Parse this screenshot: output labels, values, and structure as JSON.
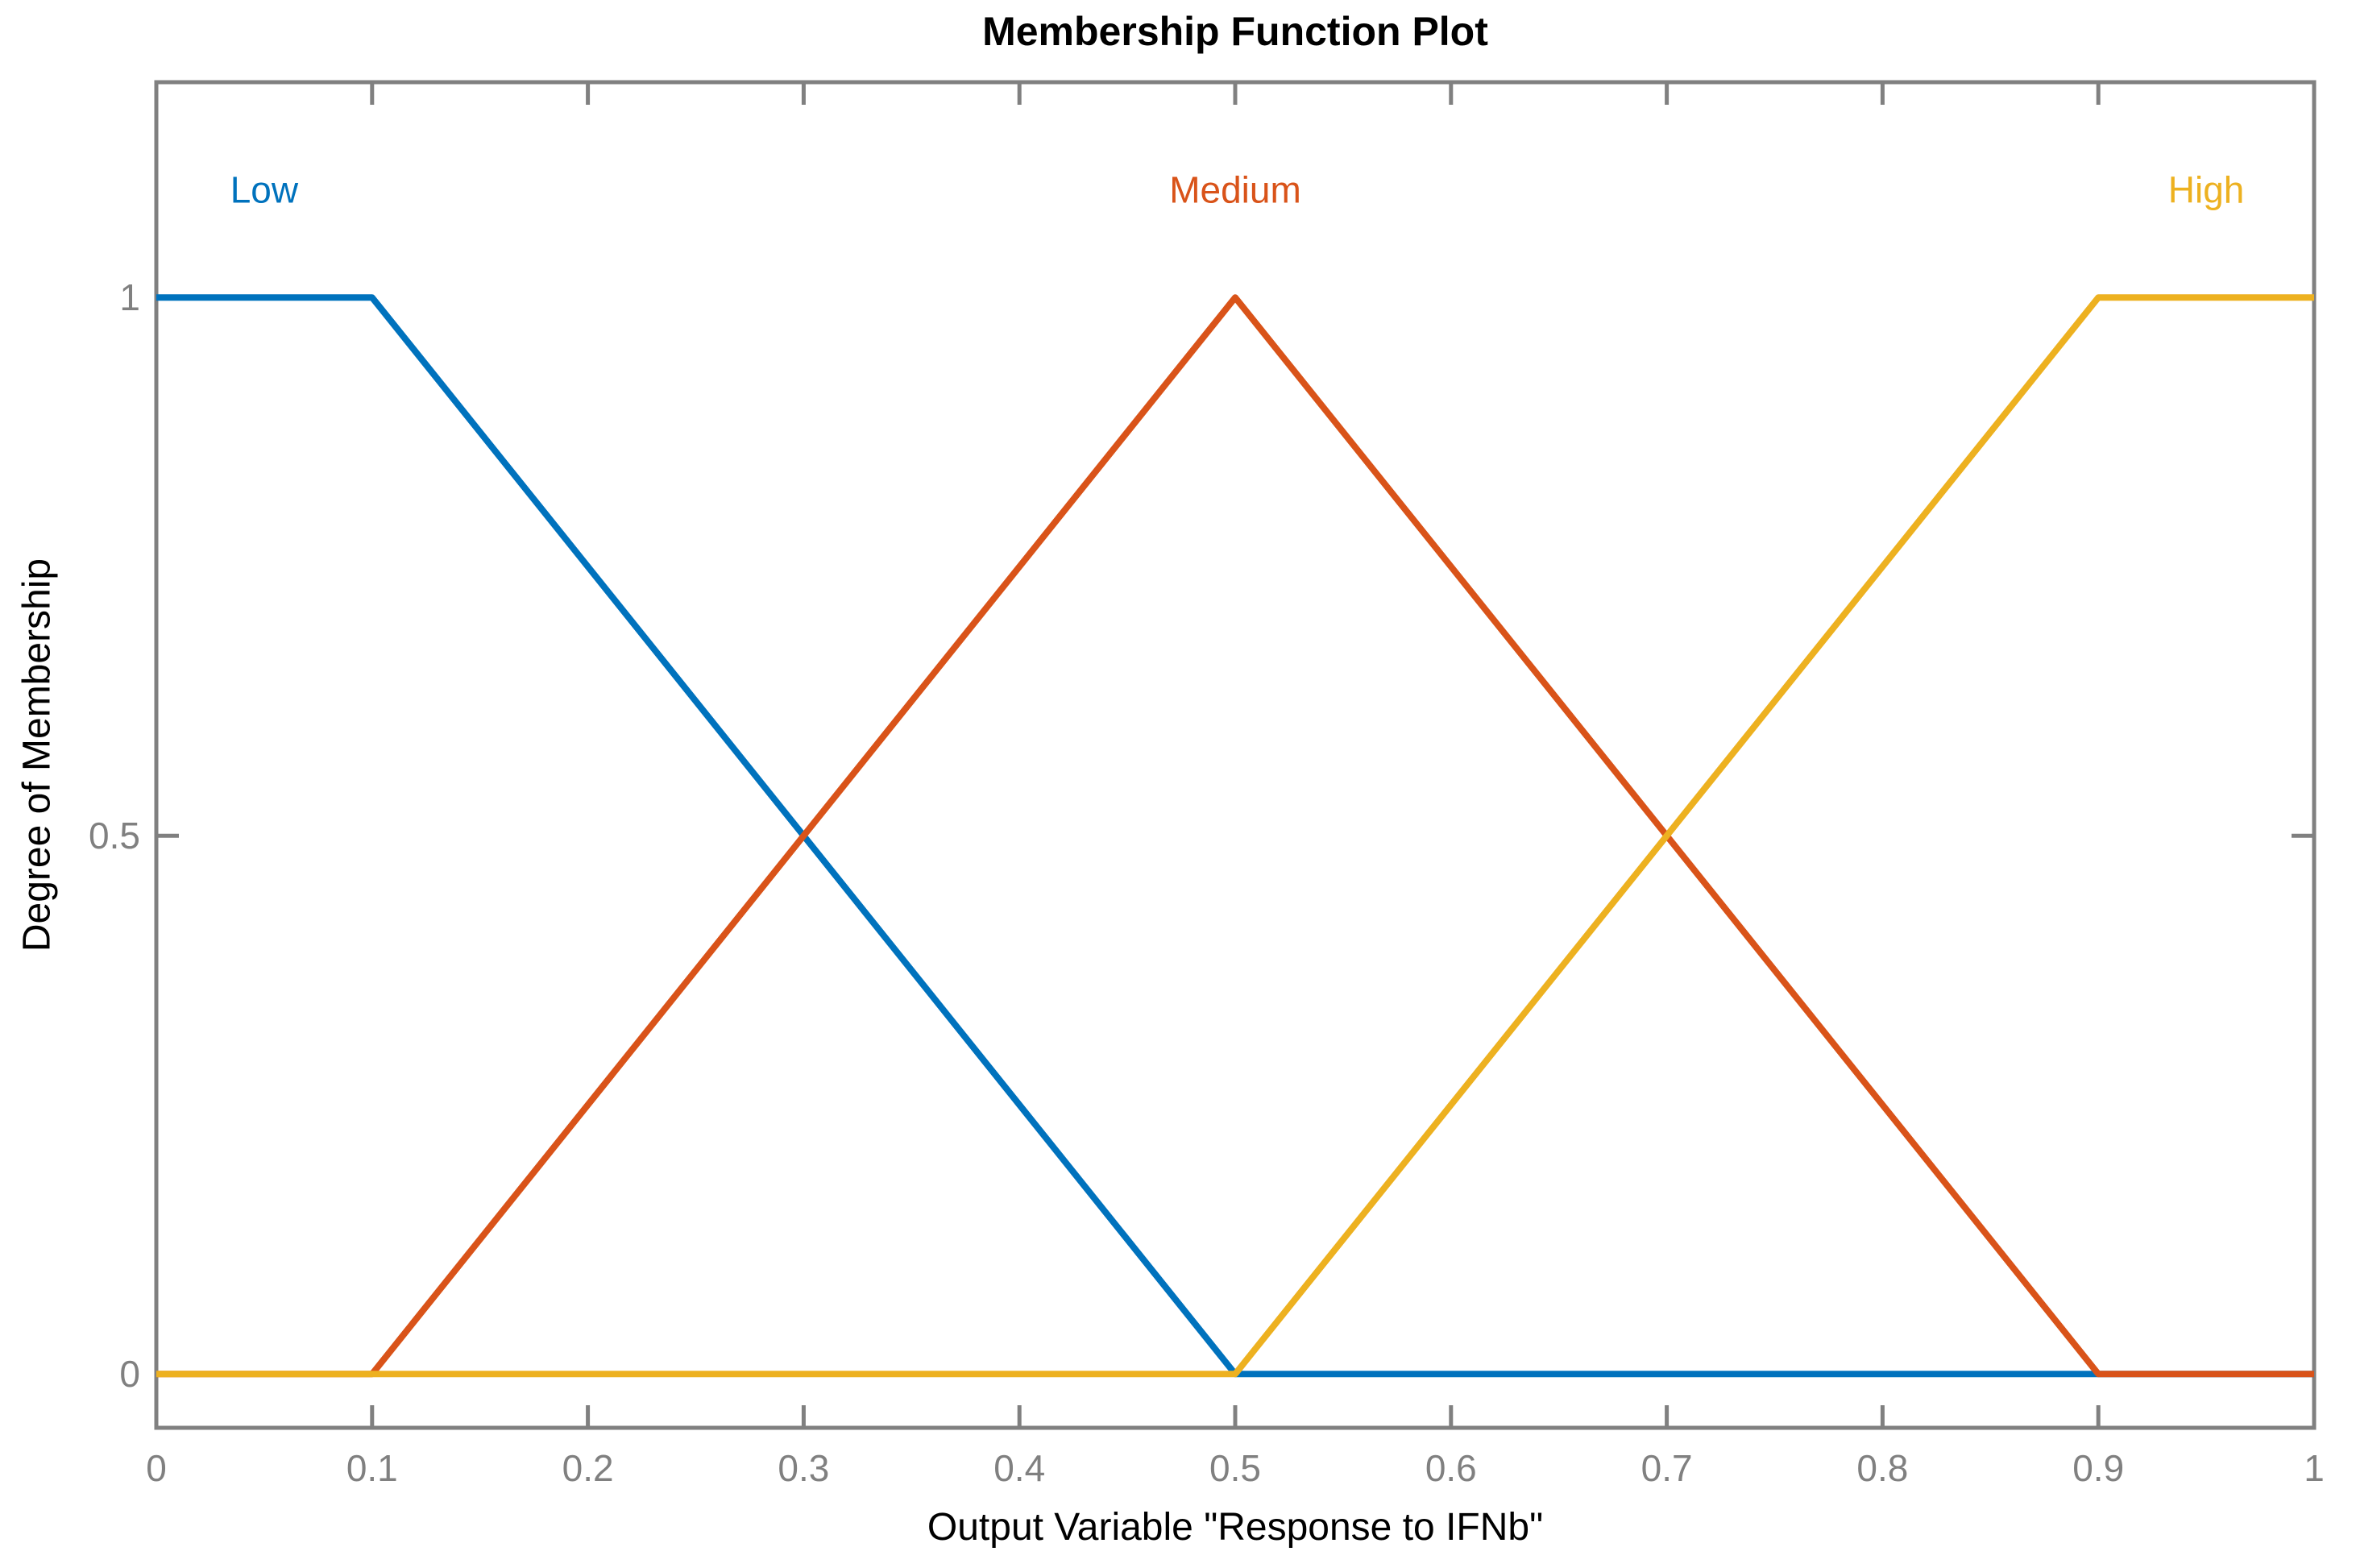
{
  "figure": {
    "title": "Membership Function Plot",
    "xlabel": "Output Variable \"Response to IFNb\"",
    "ylabel": "Degree of Membership"
  },
  "chart_data": {
    "type": "line",
    "title": "Membership Function Plot",
    "xlabel": "Output Variable \"Response to IFNb\"",
    "ylabel": "Degree of Membership",
    "xlim": [
      0,
      1
    ],
    "ylim": [
      -0.05,
      1.2
    ],
    "x_ticks": [
      0,
      0.1,
      0.2,
      0.3,
      0.4,
      0.5,
      0.6,
      0.7,
      0.8,
      0.9,
      1
    ],
    "x_tick_labels": [
      "0",
      "0.1",
      "0.2",
      "0.3",
      "0.4",
      "0.5",
      "0.6",
      "0.7",
      "0.8",
      "0.9",
      "1"
    ],
    "y_ticks": [
      0,
      0.5,
      1
    ],
    "y_tick_labels": [
      "0",
      "0.5",
      "1"
    ],
    "grid": false,
    "box": true,
    "tick_direction": "in",
    "legend_position": "inline-labels-above-curves",
    "series": [
      {
        "name": "Low",
        "color": "#0072BD",
        "x": [
          0,
          0.1,
          0.5,
          1
        ],
        "y": [
          1,
          1,
          0,
          0
        ],
        "label": "Low",
        "label_pos": {
          "x": 0.05,
          "y": 1.1
        }
      },
      {
        "name": "Medium",
        "color": "#D95319",
        "x": [
          0,
          0.1,
          0.5,
          0.9,
          1
        ],
        "y": [
          0,
          0,
          1,
          0,
          0
        ],
        "label": "Medium",
        "label_pos": {
          "x": 0.5,
          "y": 1.1
        }
      },
      {
        "name": "High",
        "color": "#EDB120",
        "x": [
          0,
          0.5,
          0.9,
          1
        ],
        "y": [
          0,
          0,
          1,
          1
        ],
        "label": "High",
        "label_pos": {
          "x": 0.95,
          "y": 1.1
        }
      }
    ],
    "styles": {
      "background_color": "#FFFFFF",
      "axis_color": "#808080",
      "tick_label_color": "#808080",
      "title_color": "#000000",
      "axis_label_color": "#000000",
      "line_width": 8,
      "axis_line_width": 5,
      "tick_length": 28
    }
  }
}
